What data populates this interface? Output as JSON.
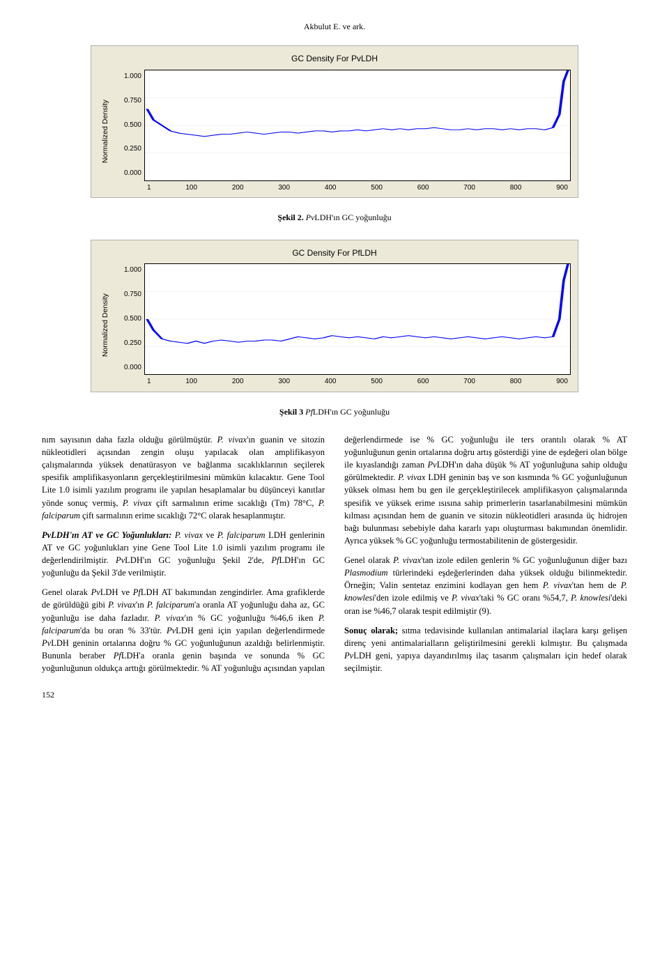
{
  "header": "Akbulut E. ve ark.",
  "chart1": {
    "title": "GC Density For PvLDH",
    "ylabel": "Normalized Density",
    "yticks": [
      "1.000",
      "0.750",
      "0.500",
      "0.250",
      "0.000"
    ],
    "xticks": [
      "1",
      "100",
      "200",
      "300",
      "400",
      "500",
      "600",
      "700",
      "800",
      "900"
    ],
    "line_color": "#0000ff",
    "background": "#ece9d8",
    "plot_bg": "#ffffff",
    "points": [
      [
        0.005,
        0.65
      ],
      [
        0.02,
        0.55
      ],
      [
        0.04,
        0.5
      ],
      [
        0.06,
        0.45
      ],
      [
        0.08,
        0.43
      ],
      [
        0.1,
        0.42
      ],
      [
        0.12,
        0.41
      ],
      [
        0.14,
        0.4
      ],
      [
        0.16,
        0.41
      ],
      [
        0.18,
        0.42
      ],
      [
        0.2,
        0.42
      ],
      [
        0.22,
        0.43
      ],
      [
        0.24,
        0.44
      ],
      [
        0.26,
        0.43
      ],
      [
        0.28,
        0.42
      ],
      [
        0.3,
        0.43
      ],
      [
        0.32,
        0.44
      ],
      [
        0.34,
        0.44
      ],
      [
        0.36,
        0.43
      ],
      [
        0.38,
        0.44
      ],
      [
        0.4,
        0.45
      ],
      [
        0.42,
        0.45
      ],
      [
        0.44,
        0.44
      ],
      [
        0.46,
        0.45
      ],
      [
        0.48,
        0.45
      ],
      [
        0.5,
        0.46
      ],
      [
        0.52,
        0.45
      ],
      [
        0.54,
        0.46
      ],
      [
        0.56,
        0.47
      ],
      [
        0.58,
        0.46
      ],
      [
        0.6,
        0.47
      ],
      [
        0.62,
        0.46
      ],
      [
        0.64,
        0.47
      ],
      [
        0.66,
        0.47
      ],
      [
        0.68,
        0.48
      ],
      [
        0.7,
        0.47
      ],
      [
        0.72,
        0.46
      ],
      [
        0.74,
        0.46
      ],
      [
        0.76,
        0.47
      ],
      [
        0.78,
        0.46
      ],
      [
        0.8,
        0.47
      ],
      [
        0.82,
        0.47
      ],
      [
        0.84,
        0.46
      ],
      [
        0.86,
        0.47
      ],
      [
        0.88,
        0.46
      ],
      [
        0.9,
        0.47
      ],
      [
        0.92,
        0.47
      ],
      [
        0.94,
        0.46
      ],
      [
        0.96,
        0.48
      ],
      [
        0.975,
        0.6
      ],
      [
        0.985,
        0.9
      ],
      [
        0.995,
        1.0
      ]
    ]
  },
  "chart2": {
    "title": "GC Density For PfLDH",
    "ylabel": "Normalized Density",
    "yticks": [
      "1.000",
      "0.750",
      "0.500",
      "0.250",
      "0.000"
    ],
    "xticks": [
      "1",
      "100",
      "200",
      "300",
      "400",
      "500",
      "600",
      "700",
      "800",
      "900"
    ],
    "line_color": "#0000ff",
    "background": "#ece9d8",
    "plot_bg": "#ffffff",
    "points": [
      [
        0.005,
        0.5
      ],
      [
        0.02,
        0.4
      ],
      [
        0.04,
        0.32
      ],
      [
        0.06,
        0.3
      ],
      [
        0.08,
        0.29
      ],
      [
        0.1,
        0.28
      ],
      [
        0.12,
        0.3
      ],
      [
        0.14,
        0.28
      ],
      [
        0.16,
        0.3
      ],
      [
        0.18,
        0.31
      ],
      [
        0.2,
        0.3
      ],
      [
        0.22,
        0.29
      ],
      [
        0.24,
        0.3
      ],
      [
        0.26,
        0.3
      ],
      [
        0.28,
        0.31
      ],
      [
        0.3,
        0.31
      ],
      [
        0.32,
        0.3
      ],
      [
        0.34,
        0.32
      ],
      [
        0.36,
        0.34
      ],
      [
        0.38,
        0.33
      ],
      [
        0.4,
        0.32
      ],
      [
        0.42,
        0.33
      ],
      [
        0.44,
        0.35
      ],
      [
        0.46,
        0.34
      ],
      [
        0.48,
        0.33
      ],
      [
        0.5,
        0.34
      ],
      [
        0.52,
        0.33
      ],
      [
        0.54,
        0.32
      ],
      [
        0.56,
        0.34
      ],
      [
        0.58,
        0.33
      ],
      [
        0.6,
        0.34
      ],
      [
        0.62,
        0.35
      ],
      [
        0.64,
        0.34
      ],
      [
        0.66,
        0.33
      ],
      [
        0.68,
        0.34
      ],
      [
        0.7,
        0.33
      ],
      [
        0.72,
        0.32
      ],
      [
        0.74,
        0.33
      ],
      [
        0.76,
        0.34
      ],
      [
        0.78,
        0.33
      ],
      [
        0.8,
        0.32
      ],
      [
        0.82,
        0.33
      ],
      [
        0.84,
        0.34
      ],
      [
        0.86,
        0.33
      ],
      [
        0.88,
        0.32
      ],
      [
        0.9,
        0.33
      ],
      [
        0.92,
        0.34
      ],
      [
        0.94,
        0.33
      ],
      [
        0.96,
        0.34
      ],
      [
        0.975,
        0.5
      ],
      [
        0.985,
        0.85
      ],
      [
        0.995,
        1.0
      ]
    ]
  },
  "caption1": {
    "pre": "Şekil 2. ",
    "italic": "Pv",
    "post": "LDH'ın GC yoğunluğu"
  },
  "caption2": {
    "pre": "Şekil 3 ",
    "italic": "Pf",
    "post": "LDH'ın GC yoğunluğu"
  },
  "body": {
    "p1": "nım sayısının daha fazla olduğu görülmüştür. ",
    "p1_i1": "P. vivax",
    "p1_b": "'ın guanin ve sitozin nükleotidleri açısından zengin oluşu yapılacak olan amplifikasyon çalışmalarında yüksek denatürasyon ve bağlanma sıcaklıklarının seçilerek spesifik amplifikasyonların gerçekleştirilmesini mümkün kılacaktır. Gene Tool Lite 1.0 isimli yazılım programı ile yapılan hesaplamalar bu düşünceyi kanıtlar yönde sonuç vermiş, ",
    "p1_i2": "P. vivax",
    "p1_c": " çift sarmalının erime sıcaklığı (Tm) 78°C, ",
    "p1_i3": "P. falciparum",
    "p1_d": " çift sarmalının erime sıcaklığı 72°C olarak hesaplanmıştır.",
    "p2_b1": "PvLDH'ın AT ve GC Yoğunlukları:",
    "p2_a": " ",
    "p2_i1": "P. vivax",
    "p2_b": " ve ",
    "p2_i2": "P. falciparum",
    "p2_c": " LDH genlerinin AT ve GC yoğunlukları yine Gene Tool Lite 1.0 isimli yazılım programı ile değerlendirilmiştir. ",
    "p2_i3": "Pv",
    "p2_d": "LDH'ın GC yoğunluğu Şekil 2'de, ",
    "p2_i4": "Pf",
    "p2_e": "LDH'ın GC yoğunluğu da Şekil 3'de verilmiştir.",
    "p3_a": "Genel olarak ",
    "p3_i1": "Pv",
    "p3_b": "LDH ve ",
    "p3_i2": "Pf",
    "p3_c": "LDH AT bakımından zengindirler. Ama grafiklerde de görüldüğü gibi ",
    "p3_i3": "P. vivax",
    "p3_d": "'ın ",
    "p3_i4": "P. falciparum",
    "p3_e": "'a oranla AT yoğunluğu daha az, GC yoğunluğu ise daha fazladır. ",
    "p3_i5": "P. vivax",
    "p3_f": "'ın % GC yoğunluğu %46,6 iken ",
    "p3_i6": "P. falciparum",
    "p3_g": "'da bu oran % 33'tür. ",
    "p3_i7": "Pv",
    "p3_h": "LDH geni için yapılan değerlendirmede ",
    "p3_i8": "Pv",
    "p3_i": "LDH geninin ortalarına doğru % GC yoğunluğunun azaldığı belirlenmiştir. Bununla beraber ",
    "p3_i9": "Pf",
    "p3_j": "LDH'a oranla genin başında ve sonunda % GC yoğunluğunun oldukça arttığı görülmektedir. % AT yoğunluğu açısından yapılan değerlendirmede ise % GC yoğunluğu ile ters orantılı olarak % AT yoğunluğunun genin ortalarına doğru artış gösterdiği yine de eşdeğeri olan bölge ile kıyaslandığı zaman ",
    "p3_i10": "Pv",
    "p3_k": "LDH'ın daha düşük % AT yoğunluğuna sahip olduğu görülmektedir. ",
    "p3_i11": "P. vivax",
    "p3_l": " LDH geninin baş ve son kısmında % GC yoğunluğunun yüksek olması hem bu gen ile gerçekleştirilecek amplifikasyon çalışmalarında spesifik ve yüksek erime ısısına sahip primerlerin tasarlanabilmesini mümkün kılması açısından hem de guanin ve sitozin nükleotidleri arasında üç hidrojen bağı bulunması sebebiyle daha kararlı yapı oluşturması bakımından önemlidir. Ayrıca yüksek % GC yoğunluğu termostabilitenin de göstergesidir.",
    "p4_a": "Genel olarak ",
    "p4_i1": "P. vivax",
    "p4_b": "'tan izole edilen genlerin % GC yoğunluğunun diğer bazı ",
    "p4_i2": "Plasmodium",
    "p4_c": " türlerindeki eşdeğerlerinden daha yüksek olduğu bilinmektedir. Örneğin; Valin sentetaz enzimini kodlayan gen hem ",
    "p4_i3": "P. vivax",
    "p4_d": "'tan hem de ",
    "p4_i4": "P. knowlesi",
    "p4_e": "'den izole edilmiş ve ",
    "p4_i5": "P. vivax",
    "p4_f": "'taki % GC oranı %54,7, ",
    "p4_i6": "P. knowlesi",
    "p4_g": "'deki oran ise %46,7 olarak tespit edilmiştir (9).",
    "p5_b1": "Sonuç olarak;",
    "p5_a": " sıtma tedavisinde kullanılan antimalarial ilaçlara karşı gelişen direnç yeni antimalarialların geliştirilmesini gerekli kılmıştır. Bu çalışmada ",
    "p5_i1": "Pv",
    "p5_b": "LDH geni, yapıya dayandırılmış ilaç tasarım çalışmaları için hedef olarak seçilmiştir."
  },
  "page_number": "152"
}
